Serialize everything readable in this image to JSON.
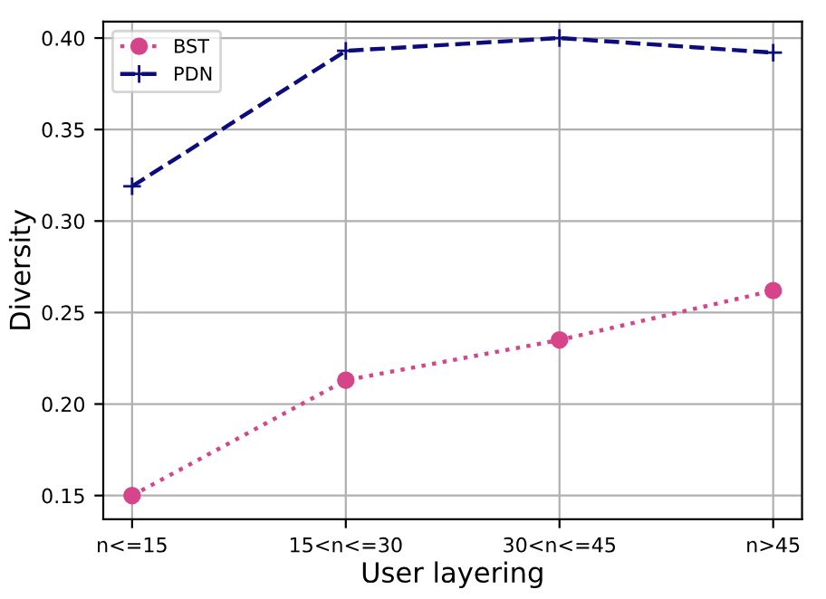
{
  "chart_data": {
    "type": "line",
    "xlabel": "User layering",
    "ylabel": "Diversity",
    "categories": [
      "n<=15",
      "15<n<=30",
      "30<n<=45",
      "n>45"
    ],
    "series": [
      {
        "name": "BST",
        "color": "#d6458a",
        "values": [
          0.15,
          0.213,
          0.235,
          0.262
        ],
        "marker": "circle",
        "line_style": "dotted"
      },
      {
        "name": "PDN",
        "color": "#0c0c7c",
        "values": [
          0.319,
          0.393,
          0.4,
          0.392
        ],
        "marker": "cross",
        "line_style": "dashed"
      }
    ],
    "ylim": [
      0.137,
      0.409
    ],
    "yticks": [
      0.15,
      {
        "value": 0.2,
        "label": "0.20"
      },
      0.25,
      {
        "value": 0.3,
        "label": "0.30"
      },
      0.35,
      {
        "value": 0.4,
        "label": "0.40"
      }
    ],
    "grid": true,
    "legend": "top left"
  }
}
